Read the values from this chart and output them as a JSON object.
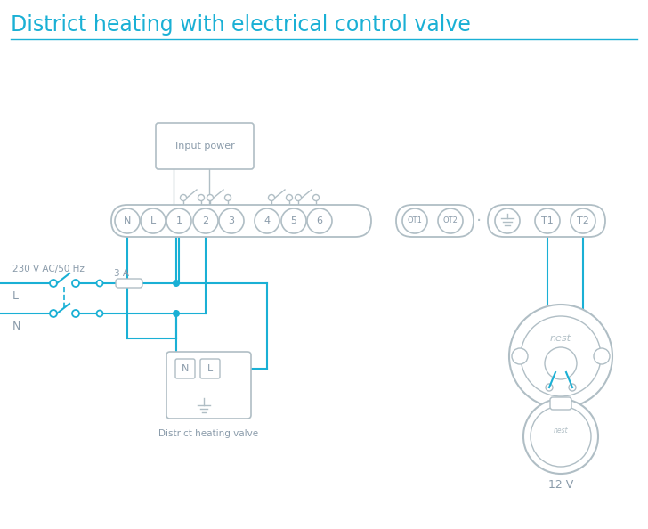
{
  "title": "District heating with electrical control valve",
  "title_color": "#1ab0d5",
  "title_fontsize": 17,
  "line_color": "#1ab0d5",
  "gray_color": "#8a9baa",
  "light_gray": "#b0bec5",
  "bg_color": "#ffffff",
  "label_230v": "230 V AC/50 Hz",
  "label_L": "L",
  "label_N": "N",
  "label_3A": "3 A",
  "label_input_power": "Input power",
  "label_district": "District heating valve",
  "label_12v": "12 V",
  "label_nest": "nest"
}
